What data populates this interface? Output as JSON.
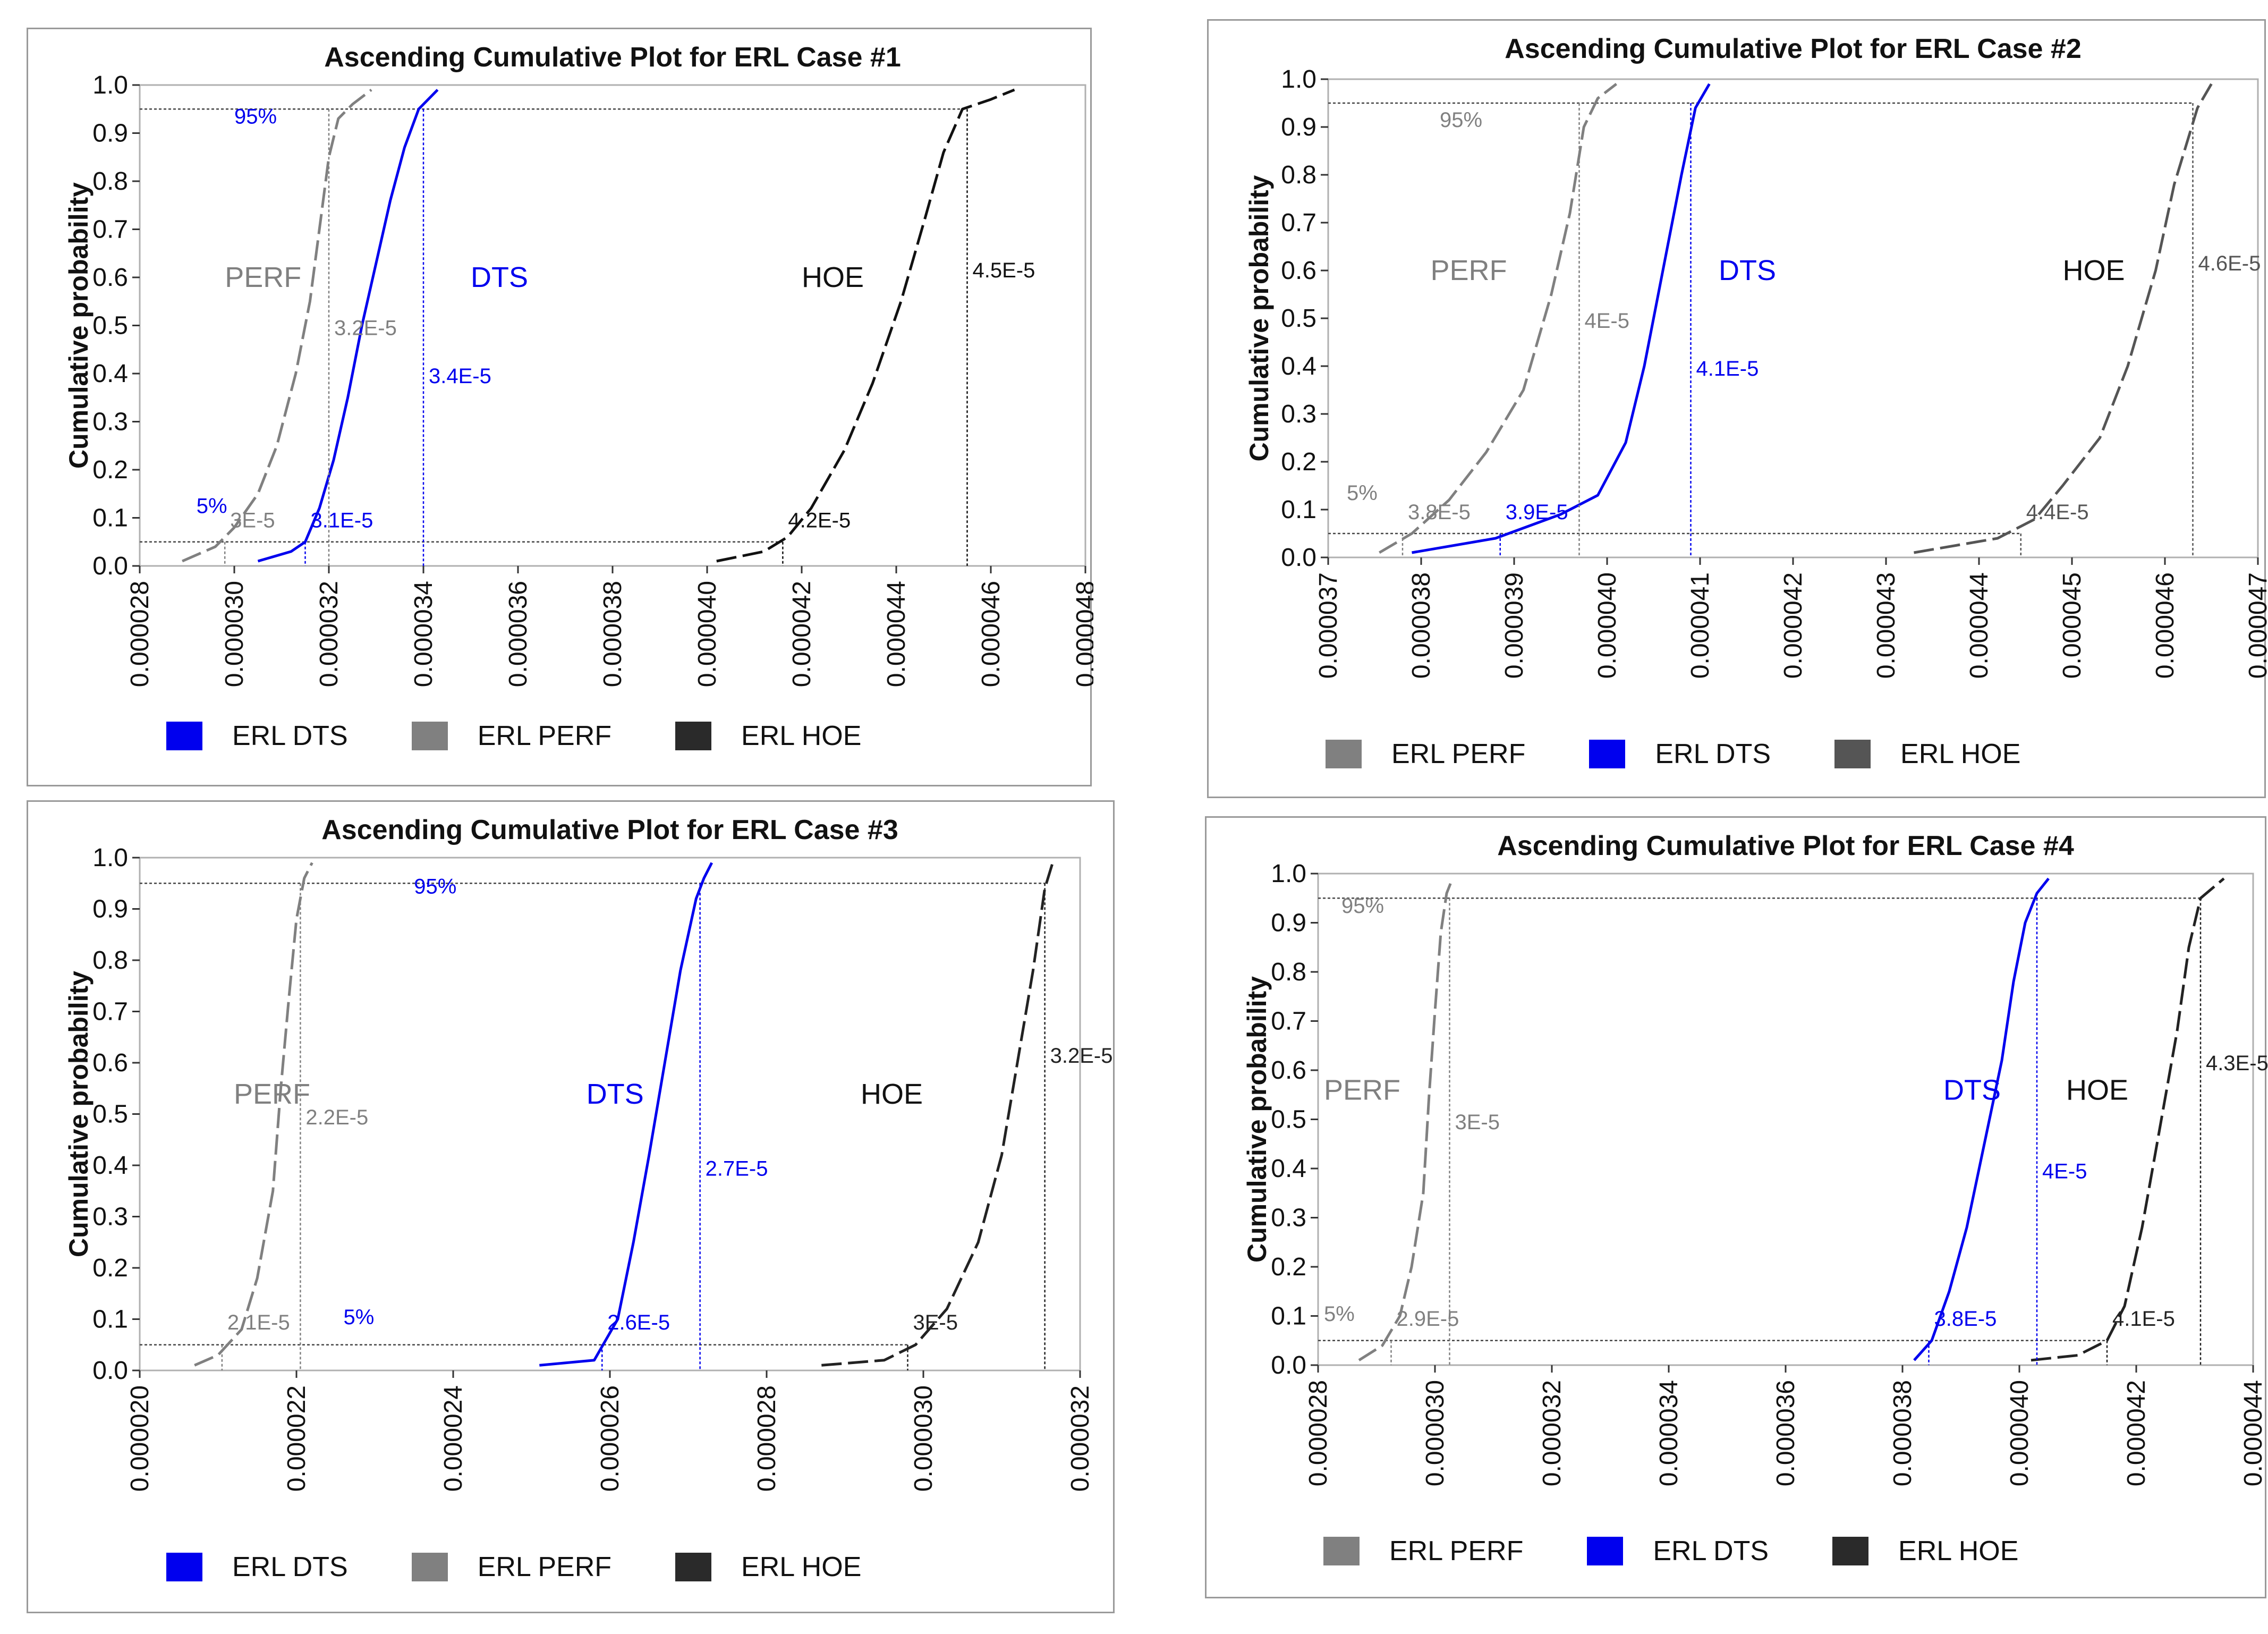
{
  "chart_data": [
    {
      "type": "line",
      "title": "Ascending Cumulative Plot for ERL Case #1",
      "ylabel": "Cumulative  probability",
      "xlabel": "",
      "xlim": [
        2.8e-05,
        4.8e-05
      ],
      "ylim": [
        0.0,
        1.0
      ],
      "x_ticks": [
        "0.000028",
        "0.000030",
        "0.000032",
        "0.000034",
        "0.000036",
        "0.000038",
        "0.000040",
        "0.000042",
        "0.000044",
        "0.000046",
        "0.000048"
      ],
      "y_ticks": [
        "0.0",
        "0.1",
        "0.2",
        "0.3",
        "0.4",
        "0.5",
        "0.6",
        "0.7",
        "0.8",
        "0.9",
        "1.0"
      ],
      "series": [
        {
          "name": "PERF",
          "color": "#808080",
          "dash": true,
          "x": [
            2.89e-05,
            2.96e-05,
            3e-05,
            3.05e-05,
            3.09e-05,
            3.13e-05,
            3.16e-05,
            3.18e-05,
            3.2e-05,
            3.22e-05,
            3.25e-05,
            3.29e-05
          ],
          "y": [
            0.01,
            0.04,
            0.08,
            0.15,
            0.25,
            0.4,
            0.55,
            0.7,
            0.85,
            0.93,
            0.96,
            0.99
          ]
        },
        {
          "name": "DTS",
          "color": "#0000ee",
          "dash": false,
          "x": [
            3.05e-05,
            3.12e-05,
            3.15e-05,
            3.18e-05,
            3.21e-05,
            3.24e-05,
            3.27e-05,
            3.3e-05,
            3.33e-05,
            3.36e-05,
            3.39e-05,
            3.43e-05
          ],
          "y": [
            0.01,
            0.03,
            0.05,
            0.12,
            0.22,
            0.35,
            0.5,
            0.63,
            0.76,
            0.87,
            0.95,
            0.99
          ]
        },
        {
          "name": "HOE",
          "color": "#111111",
          "dash": true,
          "x": [
            4.02e-05,
            4.12e-05,
            4.17e-05,
            4.22e-05,
            4.29e-05,
            4.35e-05,
            4.41e-05,
            4.46e-05,
            4.5e-05,
            4.54e-05,
            4.6e-05,
            4.65e-05
          ],
          "y": [
            0.01,
            0.03,
            0.06,
            0.12,
            0.24,
            0.38,
            0.55,
            0.72,
            0.86,
            0.95,
            0.97,
            0.99
          ]
        }
      ],
      "percentile_lines": {
        "p05": 0.05,
        "p95": 0.95
      },
      "marker_lines": [
        {
          "series": "PERF",
          "x": 3.2e-05,
          "label": "3.2E-5"
        },
        {
          "series": "DTS",
          "x": 3.4e-05,
          "label": "3.4E-5"
        },
        {
          "series": "HOE",
          "x": 4.55e-05,
          "label": "4.5E-5"
        },
        {
          "series": "PERF",
          "x": 2.98e-05,
          "label": "3E-5"
        },
        {
          "series": "DTS",
          "x": 3.15e-05,
          "label": "3.1E-5"
        },
        {
          "series": "HOE",
          "x": 4.16e-05,
          "label": "4.2E-5"
        }
      ],
      "annotations": [
        {
          "text": "95%",
          "x": 3e-05,
          "y": 0.92,
          "color": "#0000ee"
        },
        {
          "text": "5%",
          "x": 2.92e-05,
          "y": 0.11,
          "color": "#0000ee"
        },
        {
          "text": "PERF",
          "x": 2.98e-05,
          "y": 0.58,
          "color": "#808080"
        },
        {
          "text": "DTS",
          "x": 3.5e-05,
          "y": 0.58,
          "color": "#0000ee"
        },
        {
          "text": "HOE",
          "x": 4.2e-05,
          "y": 0.58,
          "color": "#111111"
        }
      ],
      "legend": [
        {
          "label": "ERL DTS",
          "color": "#0000ee"
        },
        {
          "label": "ERL PERF",
          "color": "#808080"
        },
        {
          "label": "ERL HOE",
          "color": "#2a2a2a"
        }
      ]
    },
    {
      "type": "line",
      "title": "Ascending Cumulative Plot for ERL Case #2",
      "ylabel": "Cumulative  probability",
      "xlabel": "",
      "xlim": [
        3.7e-05,
        4.7e-05
      ],
      "ylim": [
        0.0,
        1.0
      ],
      "x_ticks": [
        "0.000037",
        "0.000038",
        "0.000039",
        "0.000040",
        "0.000041",
        "0.000042",
        "0.000043",
        "0.000044",
        "0.000045",
        "0.000046",
        "0.000047"
      ],
      "y_ticks": [
        "0.0",
        "0.1",
        "0.2",
        "0.3",
        "0.4",
        "0.5",
        "0.6",
        "0.7",
        "0.8",
        "0.9",
        "1.0"
      ],
      "series": [
        {
          "name": "PERF",
          "color": "#808080",
          "dash": true,
          "x": [
            3.755e-05,
            3.79e-05,
            3.83e-05,
            3.87e-05,
            3.91e-05,
            3.94e-05,
            3.96e-05,
            3.975e-05,
            3.99e-05,
            4.01e-05
          ],
          "y": [
            0.01,
            0.05,
            0.12,
            0.22,
            0.35,
            0.55,
            0.72,
            0.9,
            0.96,
            0.99
          ]
        },
        {
          "name": "DTS",
          "color": "#0000ee",
          "dash": false,
          "x": [
            3.79e-05,
            3.88e-05,
            3.95e-05,
            3.99e-05,
            4.02e-05,
            4.04e-05,
            4.06e-05,
            4.08e-05,
            4.095e-05,
            4.11e-05
          ],
          "y": [
            0.01,
            0.04,
            0.09,
            0.13,
            0.24,
            0.4,
            0.6,
            0.8,
            0.94,
            0.99
          ]
        },
        {
          "name": "HOE",
          "color": "#555555",
          "dash": true,
          "x": [
            4.33e-05,
            4.42e-05,
            4.46e-05,
            4.49e-05,
            4.53e-05,
            4.56e-05,
            4.59e-05,
            4.61e-05,
            4.635e-05,
            4.65e-05
          ],
          "y": [
            0.01,
            0.04,
            0.08,
            0.15,
            0.25,
            0.4,
            0.6,
            0.78,
            0.94,
            0.99
          ]
        }
      ],
      "percentile_lines": {
        "p05": 0.05,
        "p95": 0.95
      },
      "marker_lines": [
        {
          "series": "PERF",
          "x": 3.97e-05,
          "label": "4E-5"
        },
        {
          "series": "DTS",
          "x": 4.09e-05,
          "label": "4.1E-5"
        },
        {
          "series": "HOE",
          "x": 4.63e-05,
          "label": "4.6E-5"
        },
        {
          "series": "PERF",
          "x": 3.78e-05,
          "label": "3.8E-5"
        },
        {
          "series": "DTS",
          "x": 3.885e-05,
          "label": "3.9E-5"
        },
        {
          "series": "HOE",
          "x": 4.445e-05,
          "label": "4.4E-5"
        }
      ],
      "annotations": [
        {
          "text": "95%",
          "x": 3.82e-05,
          "y": 0.9,
          "color": "#808080"
        },
        {
          "text": "5%",
          "x": 3.72e-05,
          "y": 0.12,
          "color": "#808080"
        },
        {
          "text": "PERF",
          "x": 3.81e-05,
          "y": 0.58,
          "color": "#808080"
        },
        {
          "text": "DTS",
          "x": 4.12e-05,
          "y": 0.58,
          "color": "#0000ee"
        },
        {
          "text": "HOE",
          "x": 4.49e-05,
          "y": 0.58,
          "color": "#111111"
        }
      ],
      "legend": [
        {
          "label": "ERL PERF",
          "color": "#808080"
        },
        {
          "label": "ERL DTS",
          "color": "#0000ee"
        },
        {
          "label": "ERL HOE",
          "color": "#555555"
        }
      ]
    },
    {
      "type": "line",
      "title": "Ascending Cumulative Plot for ERL Case #3",
      "ylabel": "Cumulative  probability",
      "xlabel": "",
      "xlim": [
        2e-05,
        3.2e-05
      ],
      "ylim": [
        0.0,
        1.0
      ],
      "x_ticks": [
        "0.000020",
        "0.000022",
        "0.000024",
        "0.000026",
        "0.000028",
        "0.000030",
        "0.000032"
      ],
      "y_ticks": [
        "0.0",
        "0.1",
        "0.2",
        "0.3",
        "0.4",
        "0.5",
        "0.6",
        "0.7",
        "0.8",
        "0.9",
        "1.0"
      ],
      "series": [
        {
          "name": "PERF",
          "color": "#808080",
          "dash": true,
          "x": [
            2.07e-05,
            2.1e-05,
            2.13e-05,
            2.15e-05,
            2.17e-05,
            2.18e-05,
            2.19e-05,
            2.2e-05,
            2.21e-05,
            2.22e-05
          ],
          "y": [
            0.01,
            0.03,
            0.08,
            0.18,
            0.35,
            0.55,
            0.72,
            0.88,
            0.96,
            0.99
          ]
        },
        {
          "name": "DTS",
          "color": "#0000ee",
          "dash": false,
          "x": [
            2.51e-05,
            2.58e-05,
            2.61e-05,
            2.63e-05,
            2.65e-05,
            2.67e-05,
            2.69e-05,
            2.71e-05,
            2.72e-05,
            2.73e-05
          ],
          "y": [
            0.01,
            0.02,
            0.1,
            0.25,
            0.42,
            0.6,
            0.78,
            0.92,
            0.96,
            0.99
          ]
        },
        {
          "name": "HOE",
          "color": "#222222",
          "dash": true,
          "x": [
            2.87e-05,
            2.95e-05,
            2.99e-05,
            3.03e-05,
            3.07e-05,
            3.1e-05,
            3.12e-05,
            3.14e-05,
            3.155e-05,
            3.165e-05
          ],
          "y": [
            0.01,
            0.02,
            0.05,
            0.12,
            0.25,
            0.42,
            0.6,
            0.78,
            0.94,
            0.99
          ]
        }
      ],
      "percentile_lines": {
        "p05": 0.05,
        "p95": 0.95
      },
      "marker_lines": [
        {
          "series": "PERF",
          "x": 2.205e-05,
          "label": "2.2E-5"
        },
        {
          "series": "DTS",
          "x": 2.715e-05,
          "label": "2.7E-5"
        },
        {
          "series": "HOE",
          "x": 3.155e-05,
          "label": "3.2E-5"
        },
        {
          "series": "PERF",
          "x": 2.105e-05,
          "label": "2.1E-5"
        },
        {
          "series": "DTS",
          "x": 2.59e-05,
          "label": "2.6E-5"
        },
        {
          "series": "HOE",
          "x": 2.98e-05,
          "label": "3E-5"
        }
      ],
      "annotations": [
        {
          "text": "95%",
          "x": 2.35e-05,
          "y": 0.93,
          "color": "#0000ee"
        },
        {
          "text": "5%",
          "x": 2.26e-05,
          "y": 0.09,
          "color": "#0000ee"
        },
        {
          "text": "PERF",
          "x": 2.12e-05,
          "y": 0.52,
          "color": "#808080"
        },
        {
          "text": "DTS",
          "x": 2.57e-05,
          "y": 0.52,
          "color": "#0000ee"
        },
        {
          "text": "HOE",
          "x": 2.92e-05,
          "y": 0.52,
          "color": "#111111"
        }
      ],
      "legend": [
        {
          "label": "ERL DTS",
          "color": "#0000ee"
        },
        {
          "label": "ERL PERF",
          "color": "#808080"
        },
        {
          "label": "ERL HOE",
          "color": "#2a2a2a"
        }
      ]
    },
    {
      "type": "line",
      "title": "Ascending Cumulative Plot for ERL Case #4",
      "ylabel": "Cumulative  probability",
      "xlabel": "",
      "xlim": [
        2.8e-05,
        4.4e-05
      ],
      "ylim": [
        0.0,
        1.0
      ],
      "x_ticks": [
        "0.000028",
        "0.000030",
        "0.000032",
        "0.000034",
        "0.000036",
        "0.000038",
        "0.000040",
        "0.000042",
        "0.000044"
      ],
      "y_ticks": [
        "0.0",
        "0.1",
        "0.2",
        "0.3",
        "0.4",
        "0.5",
        "0.6",
        "0.7",
        "0.8",
        "0.9",
        "1.0"
      ],
      "series": [
        {
          "name": "PERF",
          "color": "#808080",
          "dash": true,
          "x": [
            2.87e-05,
            2.91e-05,
            2.94e-05,
            2.96e-05,
            2.98e-05,
            2.99e-05,
            3e-05,
            3.01e-05,
            3.02e-05,
            3.03e-05
          ],
          "y": [
            0.01,
            0.04,
            0.1,
            0.2,
            0.35,
            0.55,
            0.72,
            0.88,
            0.96,
            0.99
          ]
        },
        {
          "name": "DTS",
          "color": "#0000ee",
          "dash": false,
          "x": [
            3.82e-05,
            3.85e-05,
            3.88e-05,
            3.91e-05,
            3.94e-05,
            3.97e-05,
            3.99e-05,
            4.01e-05,
            4.03e-05,
            4.05e-05
          ],
          "y": [
            0.01,
            0.05,
            0.15,
            0.28,
            0.45,
            0.62,
            0.78,
            0.9,
            0.96,
            0.99
          ]
        },
        {
          "name": "HOE",
          "color": "#222222",
          "dash": true,
          "x": [
            4.02e-05,
            4.1e-05,
            4.15e-05,
            4.18e-05,
            4.21e-05,
            4.24e-05,
            4.27e-05,
            4.29e-05,
            4.31e-05,
            4.35e-05
          ],
          "y": [
            0.01,
            0.02,
            0.05,
            0.12,
            0.28,
            0.48,
            0.68,
            0.85,
            0.95,
            0.99
          ]
        }
      ],
      "percentile_lines": {
        "p05": 0.05,
        "p95": 0.95
      },
      "marker_lines": [
        {
          "series": "PERF",
          "x": 3.025e-05,
          "label": "3E-5"
        },
        {
          "series": "DTS",
          "x": 4.03e-05,
          "label": "4E-5"
        },
        {
          "series": "HOE",
          "x": 4.31e-05,
          "label": "4.3E-5"
        },
        {
          "series": "PERF",
          "x": 2.925e-05,
          "label": "2.9E-5"
        },
        {
          "series": "DTS",
          "x": 3.845e-05,
          "label": "3.8E-5"
        },
        {
          "series": "HOE",
          "x": 4.15e-05,
          "label": "4.1E-5"
        }
      ],
      "annotations": [
        {
          "text": "95%",
          "x": 2.84e-05,
          "y": 0.92,
          "color": "#808080"
        },
        {
          "text": "5%",
          "x": 2.81e-05,
          "y": 0.09,
          "color": "#808080"
        },
        {
          "text": "PERF",
          "x": 2.81e-05,
          "y": 0.54,
          "color": "#808080"
        },
        {
          "text": "DTS",
          "x": 3.87e-05,
          "y": 0.54,
          "color": "#0000ee"
        },
        {
          "text": "HOE",
          "x": 4.08e-05,
          "y": 0.54,
          "color": "#111111"
        }
      ],
      "legend": [
        {
          "label": "ERL PERF",
          "color": "#808080"
        },
        {
          "label": "ERL DTS",
          "color": "#0000ee"
        },
        {
          "label": "ERL HOE",
          "color": "#2a2a2a"
        }
      ]
    }
  ]
}
